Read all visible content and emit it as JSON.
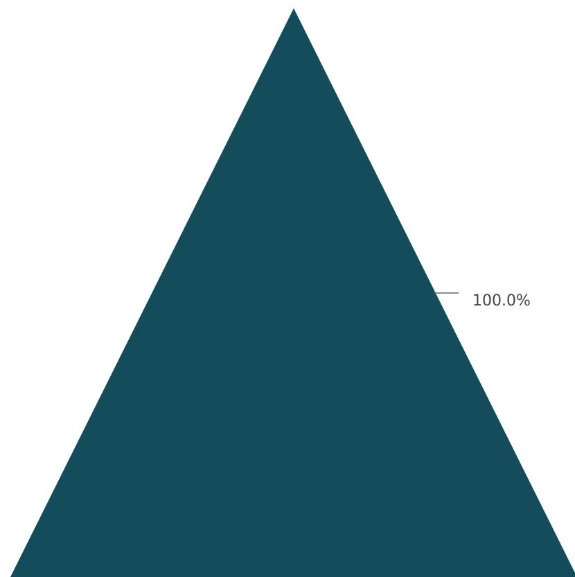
{
  "chart_data": {
    "type": "pyramid",
    "categories": [
      ""
    ],
    "values": [
      100.0
    ],
    "data_labels": [
      "100.0%"
    ],
    "colors": [
      "#144c5b"
    ],
    "legend": "none",
    "grid": false
  },
  "colors": {
    "segment": "#144c5b",
    "leader_line": "#666666",
    "label_text": "#444444",
    "background": "#ffffff"
  }
}
